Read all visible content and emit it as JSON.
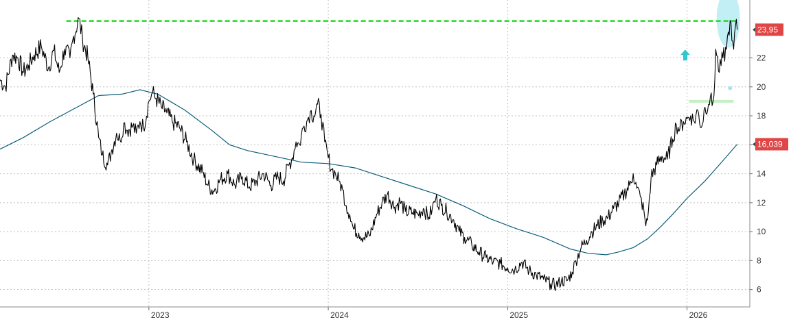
{
  "chart_data": {
    "type": "line",
    "title": "",
    "xlabel": "",
    "ylabel": "",
    "ylim": [
      4.8,
      26.0
    ],
    "xlim": [
      2022.17,
      2026.35
    ],
    "y_ticks": [
      "6",
      "8",
      "10",
      "12",
      "14",
      "16",
      "18",
      "20",
      "22"
    ],
    "x_ticks": [
      "2023",
      "2024",
      "2025",
      "2026"
    ],
    "grid": true,
    "legend": "none",
    "last_price": "23,95",
    "ma_last": "16,039",
    "resistance_level": 24.55,
    "support_level": 19.0,
    "colors": {
      "price": "#000000",
      "moving_average": "#0b5e7a",
      "resistance": "#1fdc1f",
      "support": "#c4f0c4",
      "badge": "#e04646",
      "grid": "#bfbfbf",
      "highlight": "#8fe0ee",
      "arrow": "#2ec9cf"
    },
    "series": [
      {
        "role": "price",
        "x": [
          2022.17,
          2022.2,
          2022.24,
          2022.27,
          2022.3,
          2022.33,
          2022.36,
          2022.4,
          2022.44,
          2022.47,
          2022.5,
          2022.53,
          2022.56,
          2022.58,
          2022.61,
          2022.63,
          2022.66,
          2022.69,
          2022.72,
          2022.74,
          2022.77,
          2022.79,
          2022.82,
          2022.84,
          2022.86,
          2022.88,
          2022.91,
          2022.93,
          2022.95,
          2022.97,
          2023.0,
          2023.02,
          2023.04,
          2023.07,
          2023.1,
          2023.13,
          2023.17,
          2023.21,
          2023.25,
          2023.3,
          2023.33,
          2023.36,
          2023.4,
          2023.44,
          2023.48,
          2023.52,
          2023.56,
          2023.6,
          2023.64,
          2023.68,
          2023.72,
          2023.75,
          2023.78,
          2023.8,
          2023.82,
          2023.84,
          2023.86,
          2023.88,
          2023.9,
          2023.92,
          2023.94,
          2023.96,
          2023.98,
          2024.0,
          2024.02,
          2024.04,
          2024.06,
          2024.08,
          2024.1,
          2024.12,
          2024.14,
          2024.17,
          2024.2,
          2024.23,
          2024.27,
          2024.3,
          2024.33,
          2024.37,
          2024.4,
          2024.43,
          2024.47,
          2024.5,
          2024.53,
          2024.56,
          2024.58,
          2024.6,
          2024.63,
          2024.66,
          2024.7,
          2024.73,
          2024.76,
          2024.8,
          2024.84,
          2024.88,
          2024.92,
          2024.96,
          2025.0,
          2025.04,
          2025.08,
          2025.12,
          2025.16,
          2025.2,
          2025.24,
          2025.27,
          2025.3,
          2025.33,
          2025.36,
          2025.38,
          2025.41,
          2025.44,
          2025.47,
          2025.5,
          2025.53,
          2025.56,
          2025.59,
          2025.62,
          2025.65,
          2025.68,
          2025.7,
          2025.72,
          2025.74,
          2025.76,
          2025.77,
          2025.78,
          2025.8,
          2025.83,
          2025.86,
          2025.89,
          2025.92,
          2025.94,
          2025.96,
          2025.98,
          2026.0,
          2026.02,
          2026.04,
          2026.06,
          2026.08,
          2026.1,
          2026.12,
          2026.13,
          2026.14,
          2026.15,
          2026.16,
          2026.18,
          2026.2,
          2026.22,
          2026.23,
          2026.24,
          2026.25,
          2026.26,
          2026.27,
          2026.28
        ],
        "values": [
          20.5,
          20.0,
          22.2,
          22.0,
          21.0,
          21.5,
          22.2,
          22.8,
          21.3,
          22.5,
          21.0,
          22.6,
          22.0,
          23.5,
          24.7,
          23.3,
          22.0,
          19.5,
          16.5,
          15.3,
          14.6,
          15.5,
          16.8,
          16.3,
          17.5,
          17.0,
          17.3,
          16.8,
          17.6,
          17.2,
          19.0,
          19.6,
          19.2,
          18.6,
          18.2,
          17.6,
          17.2,
          16.2,
          15.0,
          14.1,
          13.2,
          12.8,
          13.6,
          14.0,
          13.2,
          13.8,
          13.1,
          13.5,
          14.0,
          13.2,
          13.8,
          13.5,
          14.6,
          15.1,
          16.2,
          16.0,
          17.2,
          17.6,
          18.3,
          18.0,
          18.8,
          18.1,
          16.2,
          15.1,
          14.3,
          14.0,
          13.5,
          12.9,
          11.8,
          11.2,
          10.2,
          9.9,
          9.6,
          9.7,
          11.2,
          12.0,
          12.6,
          11.7,
          12.1,
          11.4,
          11.3,
          11.2,
          11.6,
          11.0,
          11.6,
          12.3,
          11.8,
          11.4,
          10.8,
          10.0,
          9.6,
          9.1,
          8.6,
          8.2,
          7.9,
          7.8,
          7.5,
          7.4,
          7.9,
          7.3,
          7.0,
          6.7,
          6.4,
          6.3,
          6.6,
          6.6,
          7.2,
          8.0,
          8.9,
          9.4,
          10.0,
          10.4,
          10.8,
          11.0,
          11.6,
          12.0,
          12.6,
          13.2,
          14.0,
          13.0,
          12.4,
          11.4,
          10.4,
          10.8,
          13.8,
          14.6,
          15.2,
          15.0,
          16.4,
          17.4,
          17.1,
          17.6,
          17.8,
          18.0,
          17.6,
          18.4,
          17.2,
          18.6,
          18.8,
          19.3,
          18.7,
          19.4,
          22.6,
          21.0,
          22.0,
          22.6,
          23.8,
          24.6,
          23.2,
          22.6,
          24.2,
          23.95
        ]
      },
      {
        "role": "moving_average",
        "x": [
          2022.17,
          2022.3,
          2022.45,
          2022.6,
          2022.72,
          2022.85,
          2022.95,
          2023.05,
          2023.2,
          2023.35,
          2023.45,
          2023.55,
          2023.7,
          2023.85,
          2024.0,
          2024.15,
          2024.3,
          2024.45,
          2024.6,
          2024.75,
          2024.9,
          2025.05,
          2025.2,
          2025.35,
          2025.45,
          2025.55,
          2025.62,
          2025.7,
          2025.78,
          2025.85,
          2025.92,
          2026.0,
          2026.1,
          2026.2,
          2026.28
        ],
        "values": [
          15.7,
          16.5,
          17.6,
          18.6,
          19.4,
          19.5,
          19.8,
          19.5,
          18.4,
          17.0,
          16.0,
          15.6,
          15.2,
          14.8,
          14.7,
          14.4,
          13.8,
          13.2,
          12.6,
          11.8,
          10.9,
          10.2,
          9.6,
          8.8,
          8.5,
          8.4,
          8.6,
          8.9,
          9.5,
          10.3,
          11.2,
          12.3,
          13.5,
          14.9,
          16.039
        ]
      }
    ]
  }
}
